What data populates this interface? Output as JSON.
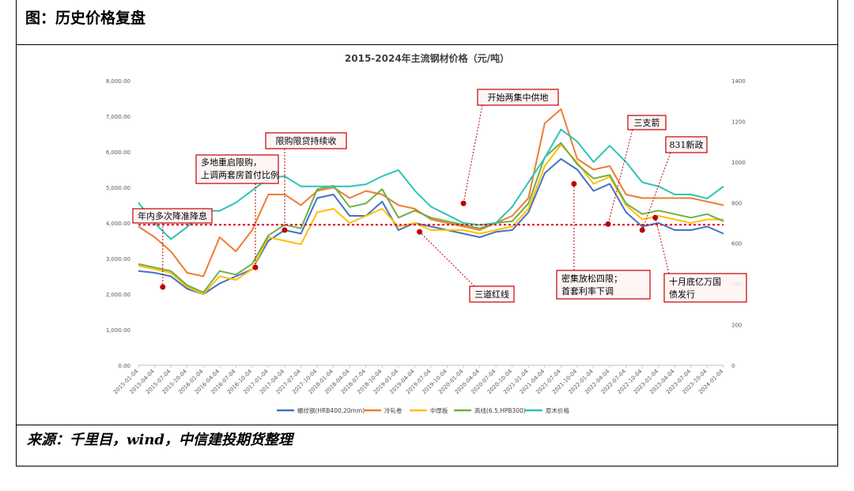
{
  "page": {
    "heading": "图：历史价格复盘",
    "source": "来源：千里目，wind，中信建投期货整理"
  },
  "chart_data": {
    "type": "line",
    "title": "2015-2024年主流钢材价格（元/吨）",
    "xlabel": "",
    "ylabel": "",
    "ylim": [
      0,
      8000
    ],
    "y2lim": [
      0,
      1400
    ],
    "yticks": [
      "8,000.00",
      "7,000.00",
      "6,000.00",
      "5,000.00",
      "4,000.00",
      "3,000.00",
      "2,000.00",
      "1,000.00",
      "0.00"
    ],
    "y2ticks": [
      "1400",
      "1200",
      "1000",
      "800",
      "600",
      "400",
      "200",
      "0"
    ],
    "categories": [
      "2015-01-04",
      "2015-04-04",
      "2015-07-04",
      "2015-10-04",
      "2016-01-04",
      "2016-04-04",
      "2016-07-04",
      "2016-10-04",
      "2017-01-04",
      "2017-04-04",
      "2017-07-04",
      "2017-10-04",
      "2018-01-04",
      "2018-04-04",
      "2018-07-04",
      "2018-10-04",
      "2019-01-04",
      "2019-04-04",
      "2019-07-04",
      "2019-10-04",
      "2020-01-04",
      "2020-04-04",
      "2020-07-04",
      "2020-10-04",
      "2021-01-04",
      "2021-04-04",
      "2021-07-04",
      "2021-10-04",
      "2022-01-04",
      "2022-04-04",
      "2022-07-04",
      "2022-10-04",
      "2023-01-04",
      "2023-04-04",
      "2023-07-04",
      "2023-10-04",
      "2024-01-04"
    ],
    "reference_line": {
      "value": 3950,
      "color": "#e0001b"
    },
    "series": [
      {
        "name": "螺纹钢(HRB400,20mm)",
        "axis": "left",
        "color": "#4472c4",
        "values": [
          2650,
          2600,
          2500,
          2150,
          2000,
          2300,
          2500,
          2700,
          3500,
          3800,
          3700,
          4700,
          4800,
          4200,
          4200,
          4600,
          3800,
          4000,
          3900,
          3800,
          3700,
          3600,
          3750,
          3800,
          4300,
          5400,
          5800,
          5500,
          4900,
          5100,
          4300,
          3900,
          4000,
          3800,
          3800,
          3900,
          3700
        ]
      },
      {
        "name": "冷轧卷",
        "axis": "left",
        "color": "#ed7d31",
        "values": [
          3900,
          3600,
          3200,
          2600,
          2500,
          3600,
          3200,
          3800,
          4800,
          4800,
          4500,
          4900,
          5000,
          4700,
          4900,
          4800,
          4500,
          4400,
          4100,
          4000,
          3900,
          3800,
          4000,
          4200,
          4700,
          6800,
          7200,
          5800,
          5500,
          5600,
          4800,
          4700,
          4700,
          4700,
          4700,
          4600,
          4500
        ]
      },
      {
        "name": "中厚板",
        "axis": "left",
        "color": "#ffc000",
        "values": [
          2800,
          2700,
          2600,
          2200,
          2000,
          2500,
          2400,
          2700,
          3600,
          3500,
          3400,
          4300,
          4400,
          4000,
          4200,
          4400,
          3900,
          4000,
          3800,
          3800,
          3800,
          3700,
          3800,
          3900,
          4400,
          5600,
          6200,
          5700,
          5100,
          5300,
          4500,
          4100,
          4200,
          4100,
          4000,
          4100,
          4100
        ]
      },
      {
        "name": "高线(6.5,HPB300)",
        "axis": "left",
        "color": "#70ad47",
        "values": [
          2850,
          2750,
          2650,
          2250,
          2050,
          2650,
          2550,
          2850,
          3650,
          3950,
          3850,
          4950,
          5050,
          4450,
          4550,
          4950,
          4150,
          4350,
          4150,
          4050,
          3950,
          3850,
          4000,
          4050,
          4550,
          5850,
          6250,
          5650,
          5250,
          5350,
          4550,
          4250,
          4350,
          4250,
          4150,
          4250,
          4050
        ]
      },
      {
        "name": "原木价格",
        "axis": "right",
        "color": "#2ec4b6",
        "values": [
          800,
          700,
          620,
          680,
          760,
          760,
          800,
          860,
          920,
          930,
          880,
          880,
          880,
          880,
          890,
          930,
          960,
          860,
          780,
          740,
          700,
          690,
          700,
          780,
          900,
          1020,
          1160,
          1100,
          1000,
          1080,
          1000,
          900,
          880,
          840,
          840,
          820,
          880
        ]
      }
    ],
    "events": [
      {
        "label": "年内多次降准降息",
        "date_index": 1.5,
        "value": 2200
      },
      {
        "label": "多地重启限购，上调两套房首付比例",
        "date_index": 7.2,
        "value": 2750
      },
      {
        "label": "限购限贷持续收",
        "date_index": 9.0,
        "value": 3800
      },
      {
        "label": "开始两集中供地",
        "date_index": 20.0,
        "value": 4550
      },
      {
        "label": "三道红线",
        "date_index": 17.3,
        "value": 3750
      },
      {
        "label": "密集放松四限；首套利率下调",
        "date_index": 26.8,
        "value": 5100
      },
      {
        "label": "三支箭",
        "date_index": 28.9,
        "value": 3970
      },
      {
        "label": "831新政",
        "date_index": 31.0,
        "value": 3800
      },
      {
        "label": "十月底亿万国债发行",
        "date_index": 31.8,
        "value": 4150
      }
    ],
    "grid": false,
    "legend_placement": "bottom"
  }
}
